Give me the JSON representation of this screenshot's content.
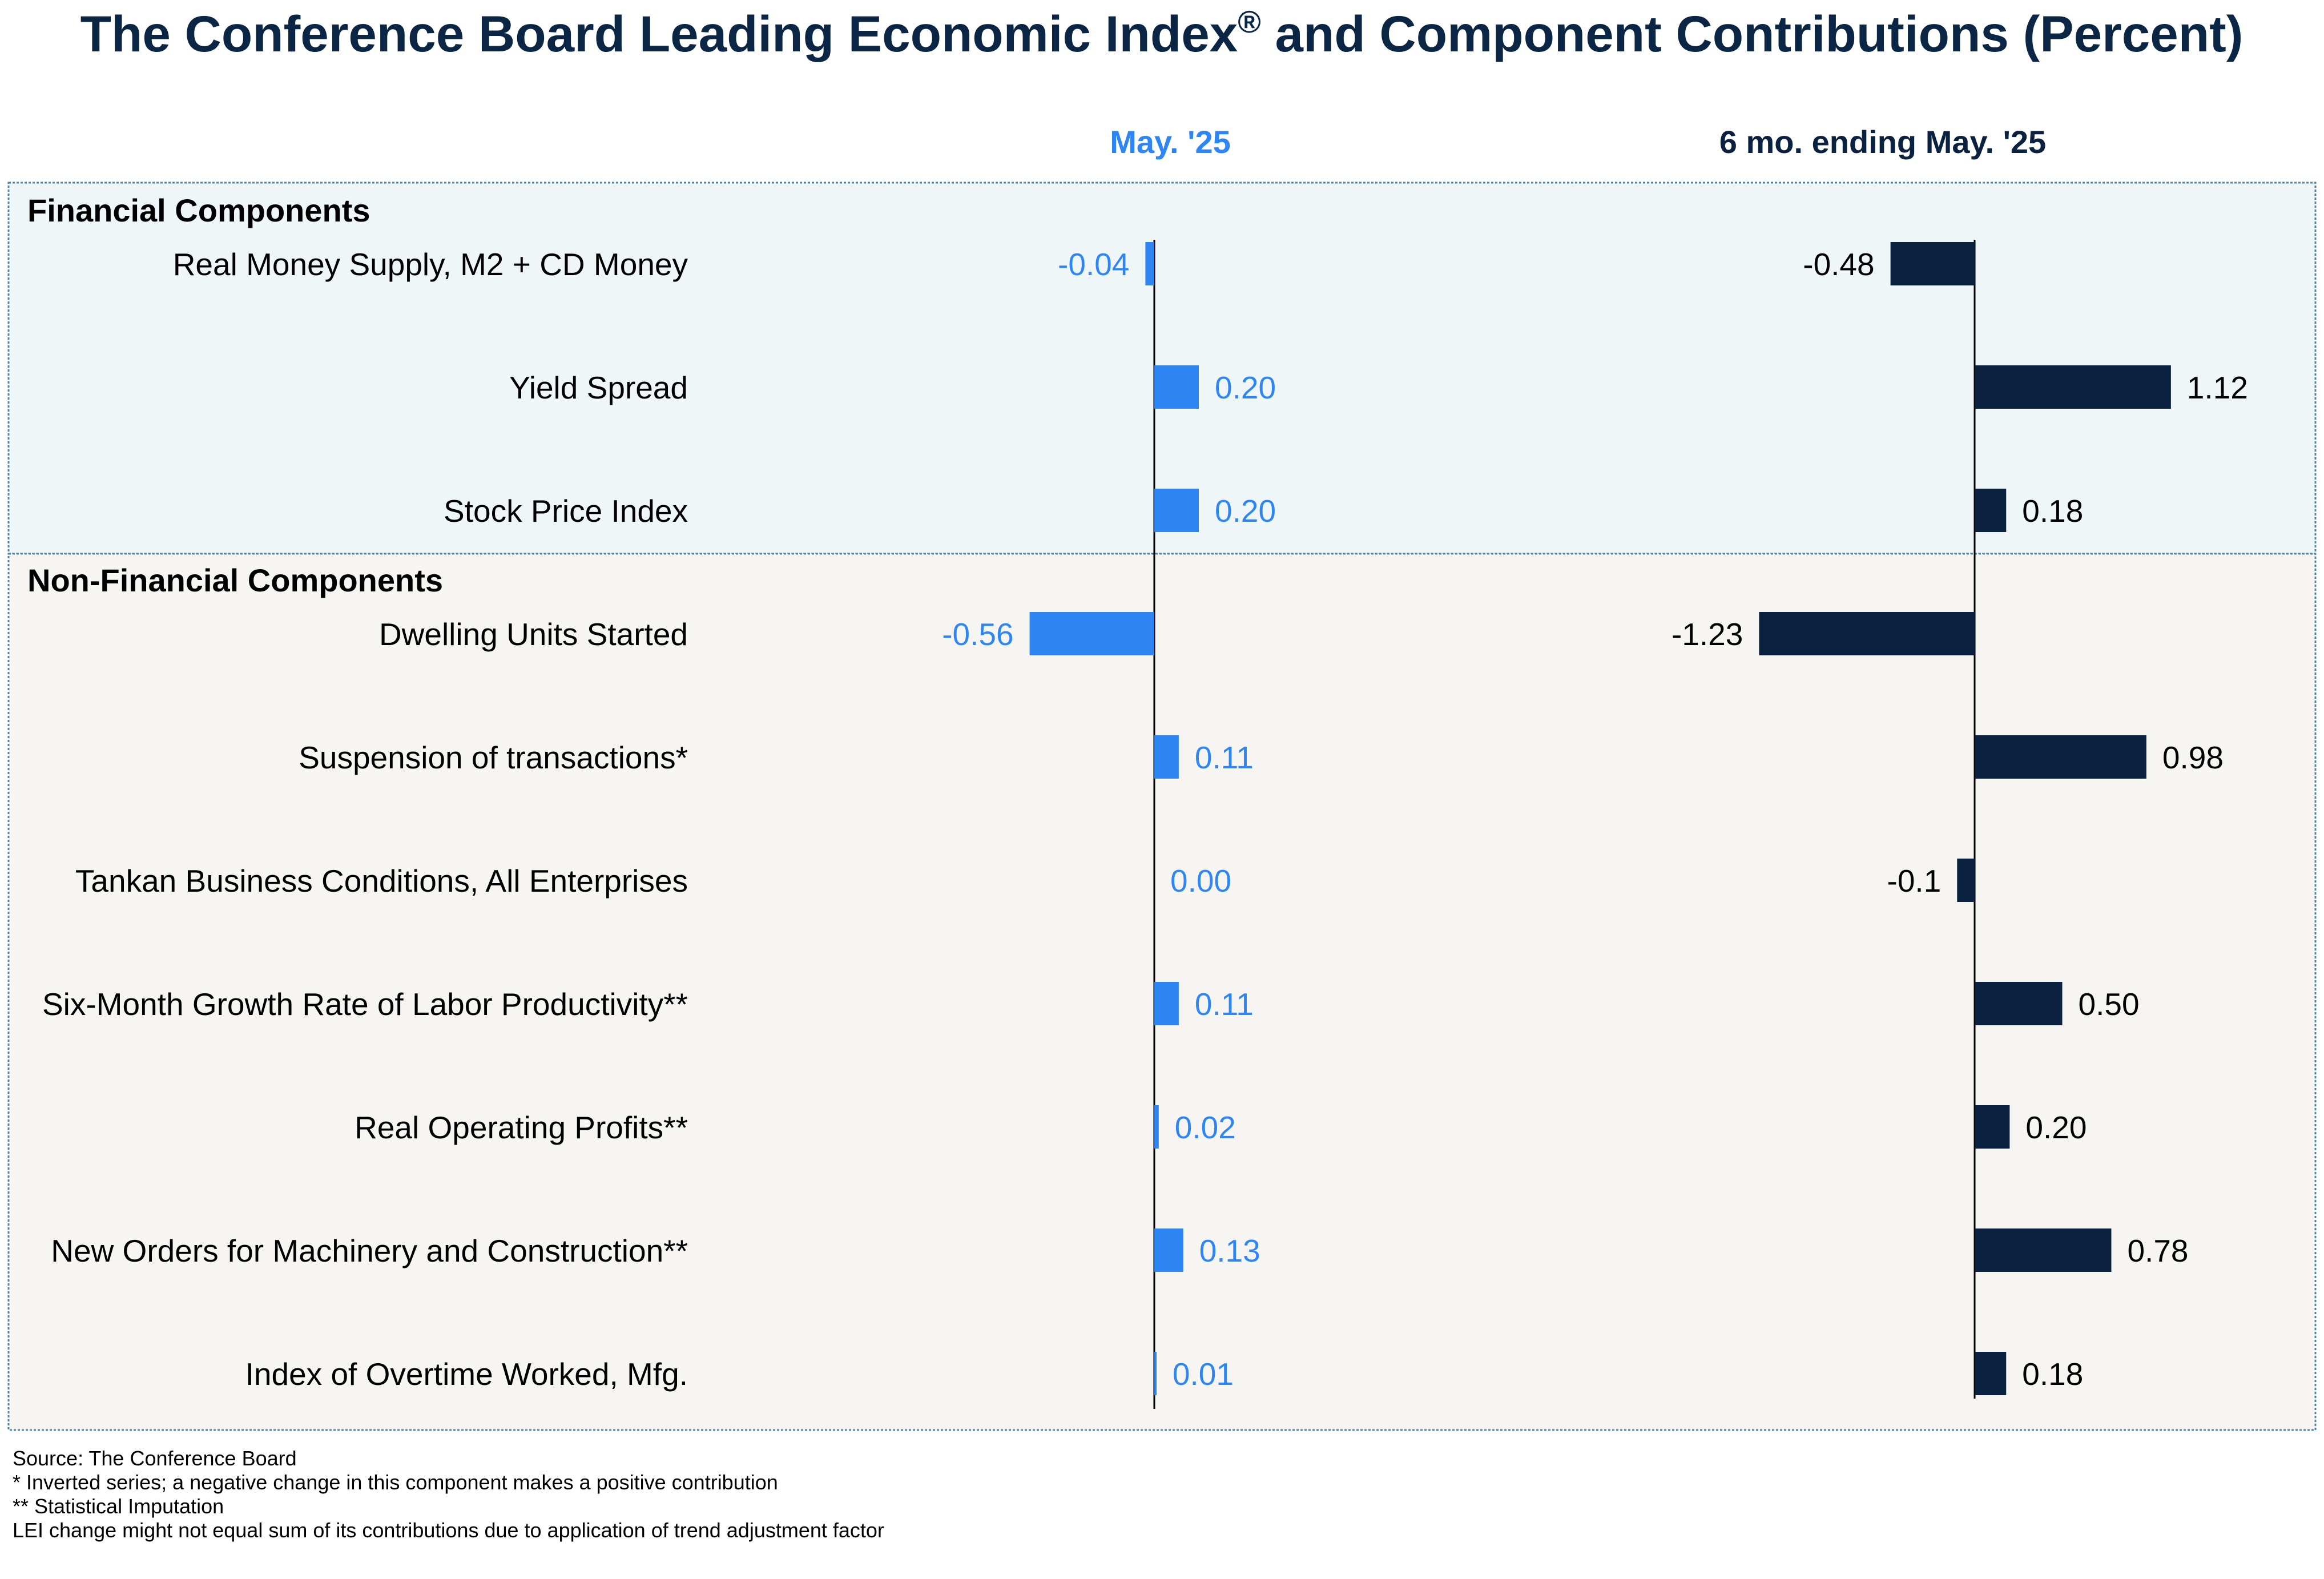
{
  "colors": {
    "background": "#ffffff",
    "title": "#0b2545",
    "may_series": "#2e86f5",
    "six_month_series": "#0b2140",
    "financial_panel_bg": "#eef6f8",
    "nonfinancial_panel_bg": "#f6f5f2",
    "panel_border": "#4d86a6",
    "text": "#000000"
  },
  "chart_data": {
    "type": "bar",
    "orientation": "horizontal",
    "title": "The Conference Board Leading Economic Index",
    "title_mark": "®",
    "title_suffix": " and Component Contributions (Percent)",
    "groups": [
      {
        "name": "Financial Components",
        "categories": [
          "Real Money Supply, M2 + CD Money",
          "Yield Spread",
          "Stock Price Index"
        ],
        "may": [
          "-0.04",
          "0.20",
          "0.20"
        ],
        "six": [
          "-0.48",
          "1.12",
          "0.18"
        ]
      },
      {
        "name": "Non-Financial Components",
        "categories": [
          "Dwelling Units Started",
          "Suspension of transactions*",
          "Tankan Business Conditions, All Enterprises",
          "Six-Month Growth Rate of Labor Productivity**",
          "Real Operating Profits**",
          "New Orders for Machinery and Construction**",
          "Index of Overtime Worked, Mfg."
        ],
        "may": [
          "-0.56",
          "0.11",
          "0.00",
          "0.11",
          "0.02",
          "0.13",
          "0.01"
        ],
        "six": [
          "-1.23",
          "0.98",
          "-0.1",
          "0.50",
          "0.20",
          "0.78",
          "0.18"
        ]
      }
    ],
    "series": [
      {
        "name": "May. '25",
        "key": "may",
        "color": "#2e86f5"
      },
      {
        "name": "6 mo. ending May. '25",
        "key": "six",
        "color": "#0b2140"
      }
    ]
  },
  "footnotes": [
    "Source: The Conference Board",
    "*  Inverted series; a negative  change in this component  makes a positive  contribution",
    "** Statistical  Imputation",
    "LEI change might not equal  sum of its contributions due to application of trend adjustment  factor"
  ]
}
